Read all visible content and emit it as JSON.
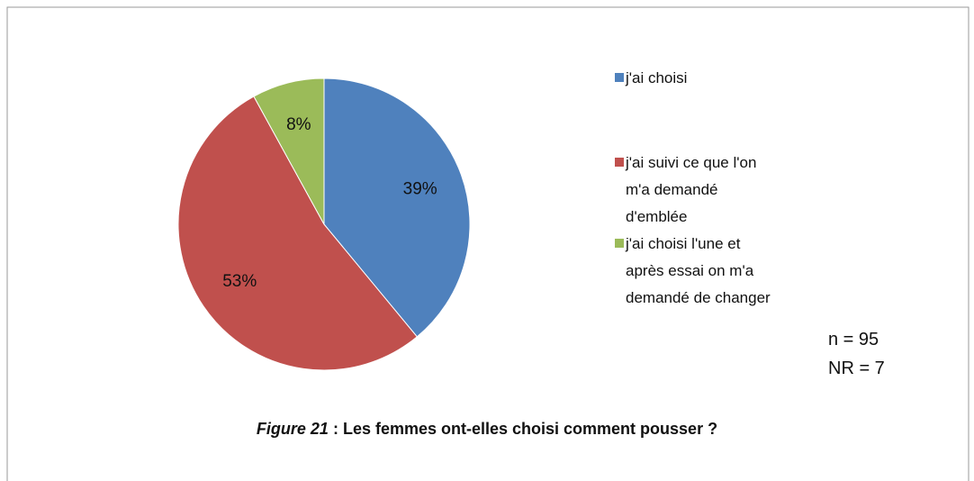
{
  "chart_data": {
    "type": "pie",
    "categories": [
      "j'ai choisi",
      "j'ai suivi ce que l'on m'a demandé d'emblée",
      "j'ai choisi l'une et après essai on m'a demandé de changer"
    ],
    "values": [
      39,
      53,
      8
    ],
    "value_labels": [
      "39%",
      "53%",
      "8%"
    ],
    "colors": [
      "#4f81bd",
      "#c0504d",
      "#9bbb59"
    ],
    "annotations": [
      "n = 95",
      "NR = 7"
    ],
    "caption": {
      "label": "Figure 21",
      "text": ": Les femmes ont-elles choisi comment pousser ?"
    }
  }
}
